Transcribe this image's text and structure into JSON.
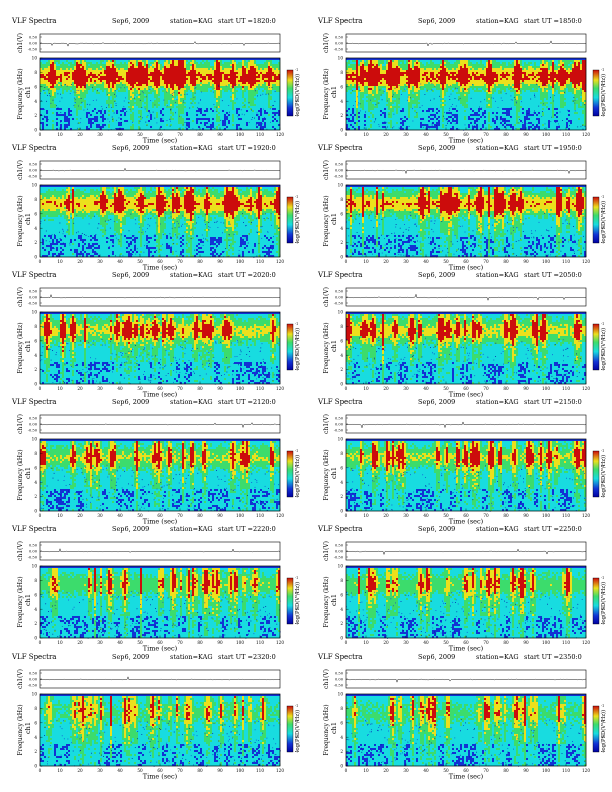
{
  "common": {
    "title": "VLF Spectra",
    "date": "Sep6, 2009",
    "station": "station=KAG",
    "time_label": "start  UT  =",
    "waveform_ylabel": "ch1(V)",
    "waveform_ticks": [
      "0.50",
      "0.00",
      "-0.50"
    ],
    "spec_ylabel": "Frequency (kHz)",
    "ch_label": "ch1",
    "spec_yticks": [
      "0",
      "2",
      "4",
      "6",
      "8",
      "10"
    ],
    "xticks": [
      "0",
      "10",
      "20",
      "30",
      "40",
      "50",
      "60",
      "70",
      "80",
      "90",
      "100",
      "110",
      "120"
    ],
    "xlabel": "Time (sec)",
    "cbar_label": "log(PSD(V²/Hz))",
    "cbar_ticks": [
      "-1",
      "-3",
      "-5",
      "-7"
    ]
  },
  "colors": {
    "blue": "#1232d4",
    "cyan": "#18dce0",
    "green": "#3cdc6c",
    "yellow": "#ece01c",
    "red": "#cc0c0c",
    "dark": "#0000a0"
  },
  "panels": [
    {
      "start_ut": "1820:0"
    },
    {
      "start_ut": "1850:0"
    },
    {
      "start_ut": "1920:0"
    },
    {
      "start_ut": "1950:0"
    },
    {
      "start_ut": "2020:0"
    },
    {
      "start_ut": "2050:0"
    },
    {
      "start_ut": "2120:0"
    },
    {
      "start_ut": "2150:0"
    },
    {
      "start_ut": "2220:0"
    },
    {
      "start_ut": "2250:0"
    },
    {
      "start_ut": "2320:0"
    },
    {
      "start_ut": "2350:0"
    }
  ],
  "chart_data": {
    "type": "heatmap",
    "description_type": "spectrogram",
    "xlabel": "Time (sec)",
    "ylabel": "Frequency (kHz)",
    "xlim": [
      0,
      120
    ],
    "ylim": [
      0,
      10
    ],
    "colorbar_label": "log(PSD(V²/Hz))",
    "colorbar_range": [
      -7,
      -1
    ]
  }
}
